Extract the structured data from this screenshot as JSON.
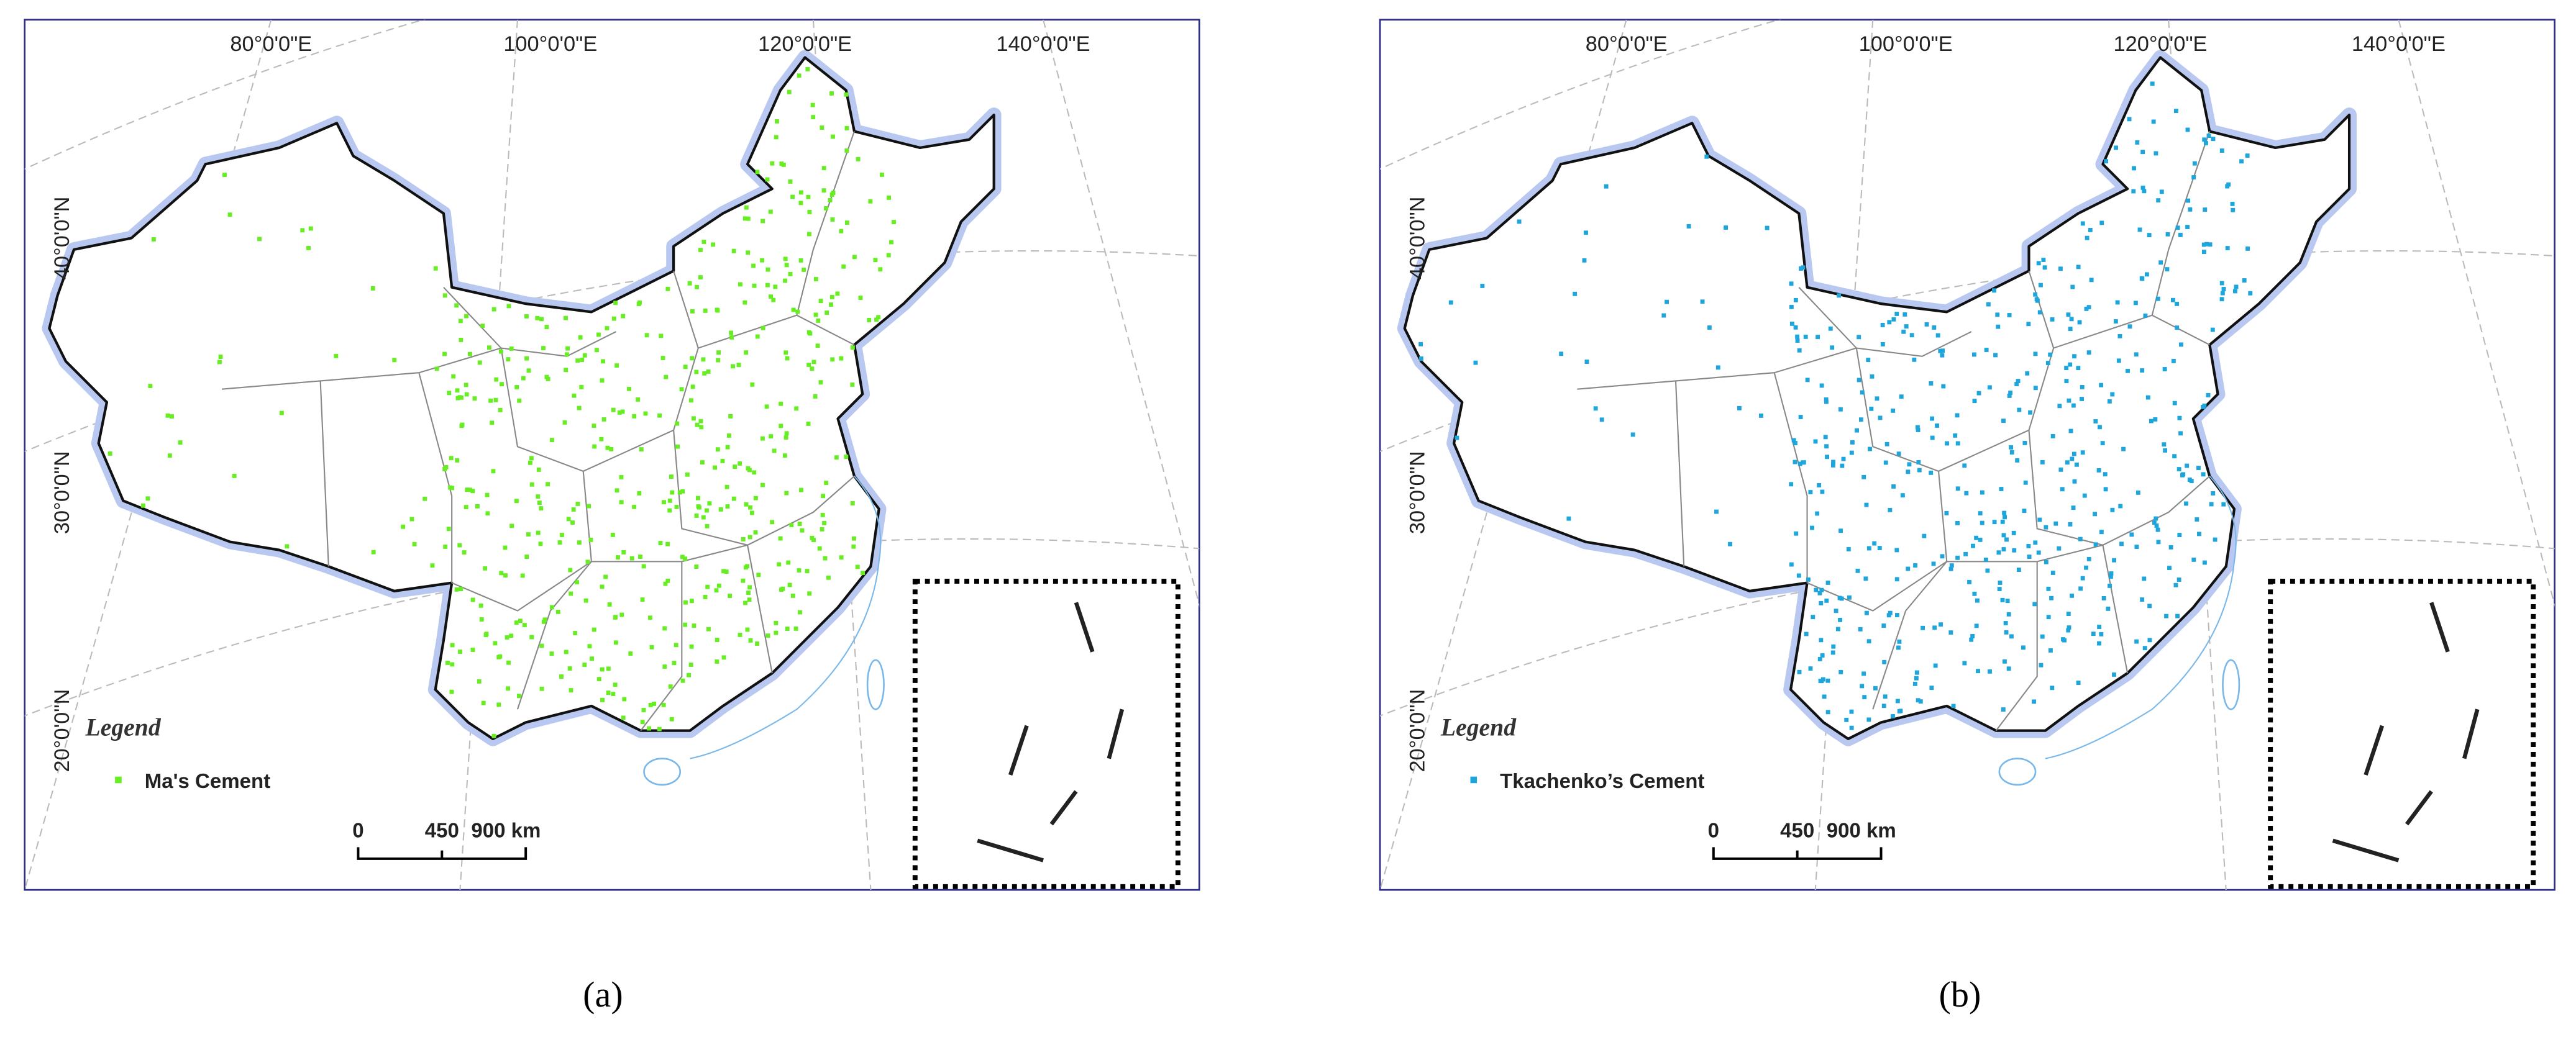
{
  "panels": [
    {
      "longitude_labels": [
        "80°0'0\"E",
        "100°0'0\"E",
        "120°0'0\"E",
        "140°0'0\"E"
      ],
      "latitude_labels": [
        "40°0'0\"N",
        "30°0'0\"N",
        "20°0'0\"N"
      ],
      "legend_title": "Legend",
      "legend_entry": "Ma's Cement",
      "marker_color": "#66ee22",
      "scale_labels": [
        "0",
        "450",
        "900 km"
      ],
      "caption": "(a)"
    },
    {
      "longitude_labels": [
        "80°0'0\"E",
        "100°0'0\"E",
        "120°0'0\"E",
        "140°0'0\"E"
      ],
      "latitude_labels": [
        "40°0'0\"N",
        "30°0'0\"N",
        "20°0'0\"N"
      ],
      "legend_title": "Legend",
      "legend_entry": "Tkachenko’s Cement",
      "marker_color": "#1ea6dc",
      "scale_labels": [
        "0",
        "450",
        "900 km"
      ],
      "caption": "(b)"
    }
  ]
}
